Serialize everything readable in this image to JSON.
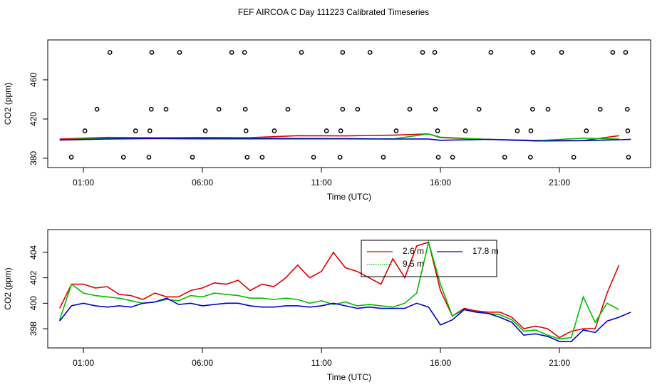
{
  "title": "FEF AIRCOA C  Day 111223  Calibrated Timeseries",
  "chart_data": [
    {
      "type": "line",
      "ylabel": "CO2 (ppm)",
      "xlabel": "Time (UTC)",
      "xlim": [
        -0.5,
        24.83
      ],
      "ylim": [
        370.5,
        500.7
      ],
      "xticks": [
        {
          "value": 1,
          "label": "01:00"
        },
        {
          "value": 6,
          "label": "06:00"
        },
        {
          "value": 11,
          "label": "11:00"
        },
        {
          "value": 16,
          "label": "16:00"
        },
        {
          "value": 21,
          "label": "21:00"
        }
      ],
      "yticks": [
        380,
        420,
        460
      ],
      "x": [
        0,
        2,
        4,
        6,
        8,
        10,
        12,
        14,
        15.5,
        16,
        18,
        20,
        22,
        23.5,
        24
      ],
      "series": [
        {
          "color": "#e00000",
          "values": [
            399.6,
            401.3,
            400.8,
            401.2,
            401.0,
            403.0,
            402.8,
            403.5,
            404.8,
            401.0,
            399.3,
            398.2,
            398.0,
            403.0,
            null
          ]
        },
        {
          "color": "#00c000",
          "values": [
            398.7,
            400.5,
            400.1,
            400.5,
            400.4,
            400.3,
            400.1,
            399.7,
            404.8,
            401.5,
            399.2,
            397.9,
            400.5,
            399.5,
            null
          ]
        },
        {
          "color": "#0000d0",
          "values": [
            398.6,
            399.7,
            400.1,
            399.8,
            399.8,
            399.8,
            399.8,
            399.6,
            399.7,
            398.3,
            399.2,
            397.6,
            397.9,
            398.9,
            399.3
          ]
        },
        {
          "type": "scatter",
          "color": "#000000",
          "x": [
            2.11,
            3.87,
            5.04,
            7.23,
            7.77,
            10.16,
            11.89,
            13.04,
            15.25,
            15.76,
            18.12,
            19.89,
            21.09,
            23.24,
            23.78,
            1.57,
            3.85,
            4.47,
            6.69,
            7.8,
            9.59,
            11.89,
            12.52,
            14.71,
            15.79,
            17.62,
            19.87,
            20.52,
            22.71,
            23.85,
            1.06,
            3.19,
            3.79,
            6.12,
            7.83,
            9.02,
            11.21,
            11.81,
            14.14,
            15.88,
            17.05,
            19.23,
            19.8,
            22.13,
            23.87,
            0.49,
            2.68,
            3.75,
            5.58,
            7.88,
            8.51,
            10.67,
            11.78,
            13.6,
            15.91,
            16.51,
            18.7,
            19.78,
            21.6,
            23.9
          ],
          "values": [
            488,
            488,
            488,
            488,
            488,
            488,
            488,
            488,
            488,
            488,
            488,
            488,
            488,
            488,
            488,
            430,
            430,
            430,
            430,
            430,
            430,
            430,
            430,
            430,
            430,
            430,
            430,
            430,
            430,
            430,
            408,
            408,
            408,
            408,
            408,
            408,
            408,
            408,
            408,
            408,
            408,
            408,
            408,
            408,
            408,
            381,
            381,
            381,
            381,
            381,
            381,
            381,
            381,
            381,
            381,
            381,
            381,
            381,
            381,
            381
          ]
        }
      ]
    },
    {
      "type": "line",
      "ylabel": "CO2 (ppm)",
      "xlabel": "Time (UTC)",
      "legend": true,
      "xlim": [
        -0.5,
        24.83
      ],
      "ylim": [
        396.49,
        405.79
      ],
      "xticks": [
        {
          "value": 1,
          "label": "01:00"
        },
        {
          "value": 6,
          "label": "06:00"
        },
        {
          "value": 11,
          "label": "11:00"
        },
        {
          "value": 16,
          "label": "16:00"
        },
        {
          "value": 21,
          "label": "21:00"
        }
      ],
      "yticks": [
        398,
        400,
        402,
        404
      ],
      "x": [
        0,
        0.5,
        1,
        1.5,
        2,
        2.5,
        3,
        3.5,
        4,
        4.5,
        5,
        5.5,
        6,
        6.5,
        7,
        7.5,
        8,
        8.5,
        9,
        9.5,
        10,
        10.5,
        11,
        11.5,
        12,
        12.5,
        13,
        13.5,
        14,
        14.5,
        15,
        15.5,
        16,
        16.5,
        17,
        17.5,
        18,
        18.5,
        19,
        19.5,
        20,
        20.5,
        21,
        21.5,
        22,
        22.5,
        23,
        23.5,
        24
      ],
      "series": [
        {
          "name": "2.6 m",
          "color": "#e00000",
          "values": [
            399.6,
            401.5,
            401.5,
            401.2,
            401.3,
            400.7,
            400.6,
            400.3,
            400.8,
            400.5,
            400.5,
            401.0,
            401.2,
            401.6,
            401.5,
            401.8,
            401.0,
            401.5,
            401.3,
            402.0,
            403.0,
            402.0,
            402.5,
            404.0,
            402.8,
            402.5,
            402.0,
            401.5,
            403.5,
            402.0,
            404.5,
            404.8,
            401.0,
            399.0,
            399.6,
            399.4,
            399.3,
            399.3,
            398.9,
            398.0,
            398.2,
            398.0,
            397.3,
            397.8,
            398.0,
            398.0,
            400.8,
            403.0,
            null
          ]
        },
        {
          "name": "9.5 m",
          "color": "#00c000",
          "values": [
            398.7,
            401.5,
            400.8,
            400.6,
            400.5,
            400.4,
            400.2,
            400.0,
            400.1,
            400.3,
            400.2,
            400.6,
            400.5,
            400.8,
            400.7,
            400.6,
            400.4,
            400.4,
            400.3,
            400.4,
            400.3,
            400.0,
            400.2,
            399.9,
            400.1,
            399.8,
            399.9,
            399.8,
            399.7,
            400.0,
            400.8,
            404.8,
            401.5,
            399.0,
            399.5,
            399.3,
            399.2,
            399.1,
            398.7,
            397.8,
            397.9,
            397.5,
            397.2,
            397.3,
            400.5,
            398.5,
            400.0,
            399.5,
            null
          ]
        },
        {
          "name": "17.8 m",
          "color": "#0000d0",
          "values": [
            398.6,
            399.8,
            400.0,
            399.8,
            399.7,
            399.8,
            399.7,
            400.0,
            400.1,
            400.4,
            399.9,
            400.0,
            399.8,
            399.9,
            400.0,
            400.0,
            399.8,
            399.7,
            399.7,
            399.8,
            399.8,
            399.7,
            399.8,
            400.0,
            399.8,
            399.6,
            399.7,
            399.6,
            399.6,
            399.6,
            400.0,
            399.7,
            398.3,
            398.7,
            399.5,
            399.3,
            399.2,
            398.9,
            398.5,
            397.5,
            397.6,
            397.4,
            397.0,
            397.0,
            397.9,
            397.7,
            398.6,
            398.9,
            399.3
          ]
        }
      ]
    }
  ]
}
